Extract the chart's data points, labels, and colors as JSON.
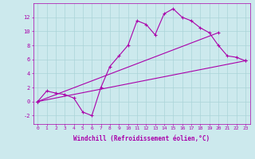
{
  "background_color": "#cce9ed",
  "line_color": "#aa00aa",
  "marker": "+",
  "markersize": 3,
  "linewidth": 0.8,
  "xlabel": "Windchill (Refroidissement éolien,°C)",
  "xlabel_fontsize": 5.5,
  "xtick_fontsize": 4.5,
  "ytick_fontsize": 5,
  "xlim": [
    -0.5,
    23.5
  ],
  "ylim": [
    -3.2,
    14.0
  ],
  "grid_color": "#aad4d8",
  "grid_linewidth": 0.5,
  "yticks": [
    -2,
    0,
    2,
    4,
    6,
    8,
    10,
    12
  ],
  "xticks": [
    0,
    1,
    2,
    3,
    4,
    5,
    6,
    7,
    8,
    9,
    10,
    11,
    12,
    13,
    14,
    15,
    16,
    17,
    18,
    19,
    20,
    21,
    22,
    23
  ],
  "line1_x": [
    0,
    1,
    2,
    3,
    4,
    5,
    6,
    7,
    8,
    9,
    10,
    11,
    12,
    13,
    14,
    15,
    16,
    17,
    18,
    19,
    20,
    21,
    22,
    23
  ],
  "line1_y": [
    0.0,
    1.5,
    1.2,
    1.0,
    0.5,
    -1.5,
    -2.0,
    2.0,
    5.0,
    6.5,
    8.0,
    11.5,
    11.0,
    9.5,
    12.5,
    13.2,
    12.0,
    11.5,
    10.5,
    9.8,
    8.0,
    6.5,
    6.3,
    5.8
  ],
  "line2_x": [
    0,
    20
  ],
  "line2_y": [
    0.0,
    9.8
  ],
  "line3_x": [
    0,
    23
  ],
  "line3_y": [
    0.0,
    5.8
  ]
}
